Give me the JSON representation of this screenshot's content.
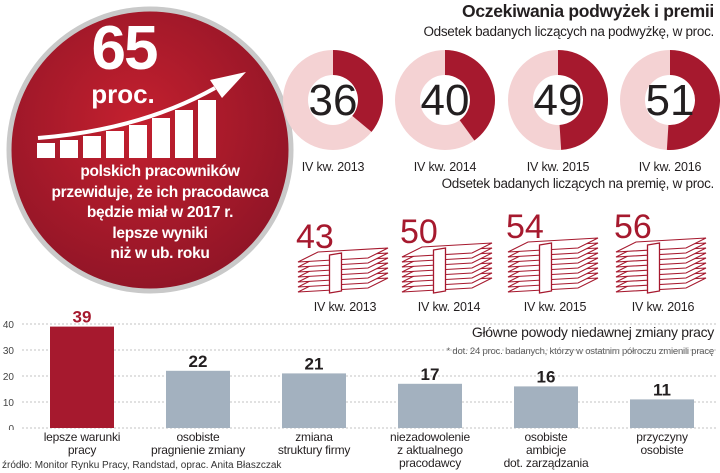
{
  "title": "Oczekiwania podwyżek i premii",
  "highlight": {
    "value": "65",
    "unit": "proc.",
    "caption": "polskich pracowników\nprzewiduje, że ich pracodawca\nbędzie miał w 2017 r.\nlepsze wyniki\nniż w ub. roku",
    "circle_color": "#a6192e"
  },
  "source": "źródło: Monitor Rynku Pracy, Randstad, oprac. Anita Błaszczak",
  "chart_data": [
    {
      "type": "pie",
      "title": "Odsetek badanych liczących na podwyżkę, w proc.",
      "categories": [
        "IV kw. 2013",
        "IV kw. 2014",
        "IV kw. 2015",
        "IV kw. 2016"
      ],
      "values": [
        36,
        40,
        49,
        51
      ],
      "colors": {
        "value": "#a6192e",
        "rest": "#f4d2d3"
      }
    },
    {
      "type": "bar",
      "title": "Odsetek badanych liczących na premię, w proc.",
      "categories": [
        "IV kw. 2013",
        "IV kw. 2014",
        "IV kw. 2015",
        "IV kw. 2016"
      ],
      "values": [
        43,
        50,
        54,
        56
      ],
      "colors": {
        "value": "#a6192e"
      }
    },
    {
      "type": "bar",
      "title": "Główne powody niedawnej zmiany pracy",
      "note": "* dot. 24 proc. badanych, którzy w ostatnim półroczu zmienili pracę",
      "categories": [
        "lepsze warunki\npracy",
        "osobiste\npragnienie zmiany",
        "zmiana\nstruktury firmy",
        "niezadowolenie\nz aktualnego\npracodawcy",
        "osobiste\nambicje\ndot. zarządzania",
        "przyczyny\nosobiste"
      ],
      "values": [
        39,
        22,
        21,
        17,
        16,
        11
      ],
      "yticks": [
        "0",
        "10",
        "20",
        "30",
        "40"
      ],
      "ylim": [
        0,
        40
      ],
      "grid": true,
      "colors": {
        "highlight": "#a6192e",
        "default": "#a3b1bf"
      }
    }
  ]
}
